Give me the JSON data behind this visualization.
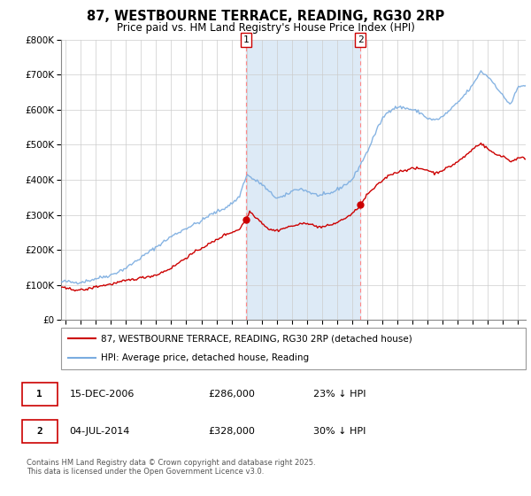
{
  "title": "87, WESTBOURNE TERRACE, READING, RG30 2RP",
  "subtitle": "Price paid vs. HM Land Registry's House Price Index (HPI)",
  "legend_line1": "87, WESTBOURNE TERRACE, READING, RG30 2RP (detached house)",
  "legend_line2": "HPI: Average price, detached house, Reading",
  "footnote": "Contains HM Land Registry data © Crown copyright and database right 2025.\nThis data is licensed under the Open Government Licence v3.0.",
  "sale1_label": "1",
  "sale1_date": "15-DEC-2006",
  "sale1_price": "£286,000",
  "sale1_hpi": "23% ↓ HPI",
  "sale1_x": 2006.96,
  "sale1_y": 286000,
  "sale2_label": "2",
  "sale2_date": "04-JUL-2014",
  "sale2_price": "£328,000",
  "sale2_hpi": "30% ↓ HPI",
  "sale2_x": 2014.54,
  "sale2_y": 328000,
  "price_color": "#cc0000",
  "hpi_color": "#7aace0",
  "background_shading": "#ddeaf6",
  "vline_color": "#ff8888",
  "box_color": "#cc0000",
  "ylim": [
    0,
    800000
  ],
  "yticks": [
    0,
    100000,
    200000,
    300000,
    400000,
    500000,
    600000,
    700000,
    800000
  ],
  "ytick_labels": [
    "£0",
    "£100K",
    "£200K",
    "£300K",
    "£400K",
    "£500K",
    "£600K",
    "£700K",
    "£800K"
  ],
  "xlim_start": 1994.7,
  "xlim_end": 2025.5,
  "xticks": [
    1995,
    1996,
    1997,
    1998,
    1999,
    2000,
    2001,
    2002,
    2003,
    2004,
    2005,
    2006,
    2007,
    2008,
    2009,
    2010,
    2011,
    2012,
    2013,
    2014,
    2015,
    2016,
    2017,
    2018,
    2019,
    2020,
    2021,
    2022,
    2023,
    2024,
    2025
  ]
}
